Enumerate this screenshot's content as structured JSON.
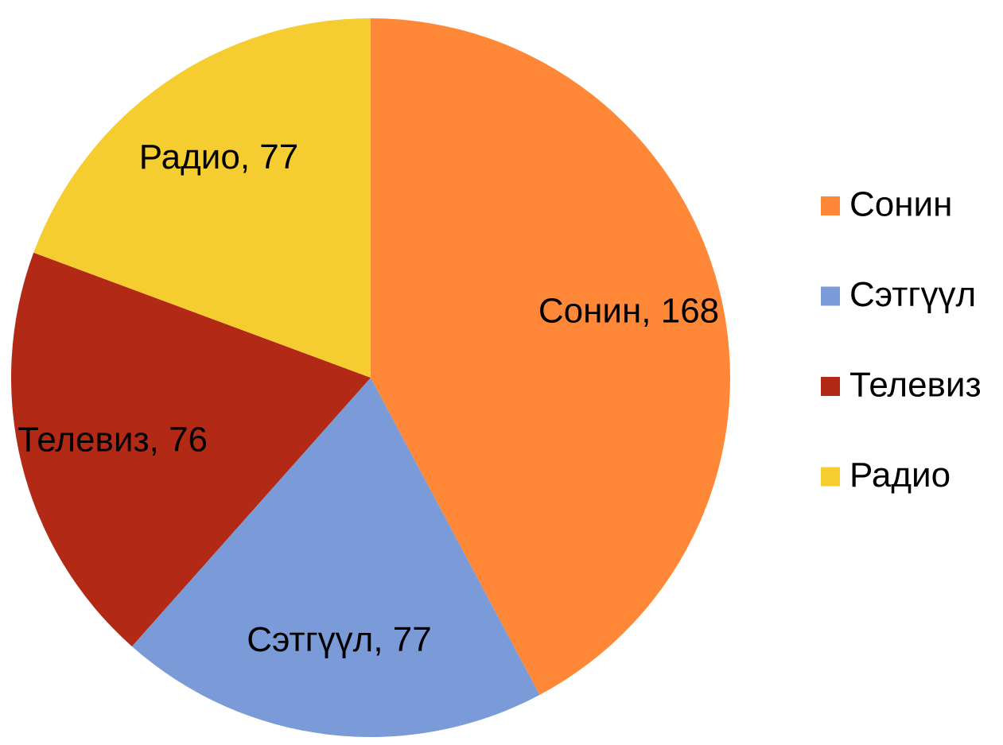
{
  "chart_data": {
    "type": "pie",
    "categories": [
      "Сонин",
      "Сэтгүүл",
      "Телевиз",
      "Радио"
    ],
    "values": [
      168,
      77,
      76,
      77
    ],
    "value_labels": [
      "Сонин, 168",
      "Сэтгүүл, 77",
      "Телевиз, 76",
      "Радио, 77"
    ],
    "colors": [
      "#ff8838",
      "#7a9bd8",
      "#b22a15",
      "#f5cd30"
    ],
    "legend": "right"
  }
}
